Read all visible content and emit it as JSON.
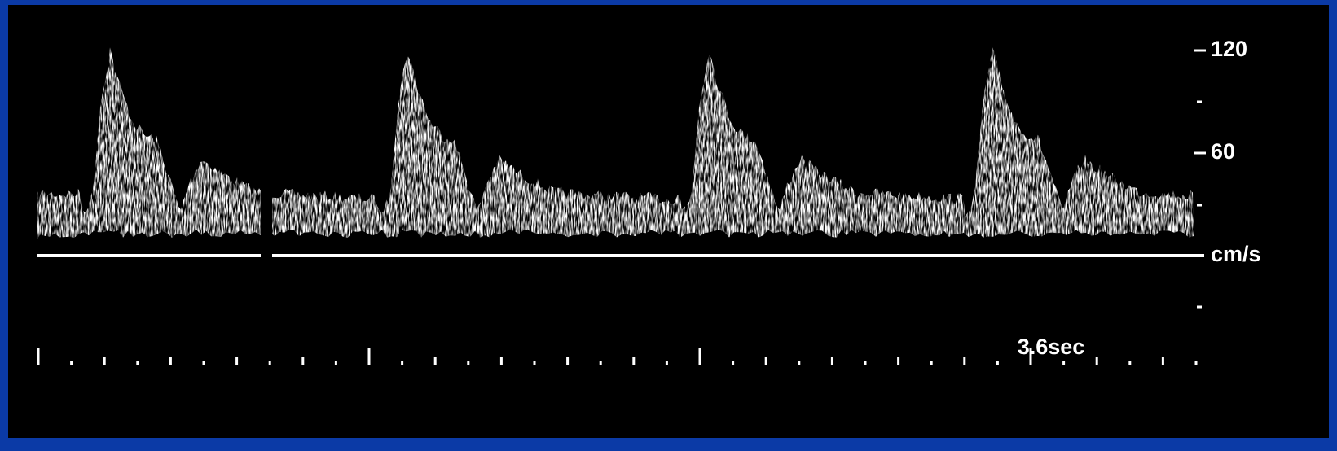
{
  "scale_labels": [
    "120",
    "60"
  ],
  "unit": "cm/s",
  "time_label": "3.6sec"
}
